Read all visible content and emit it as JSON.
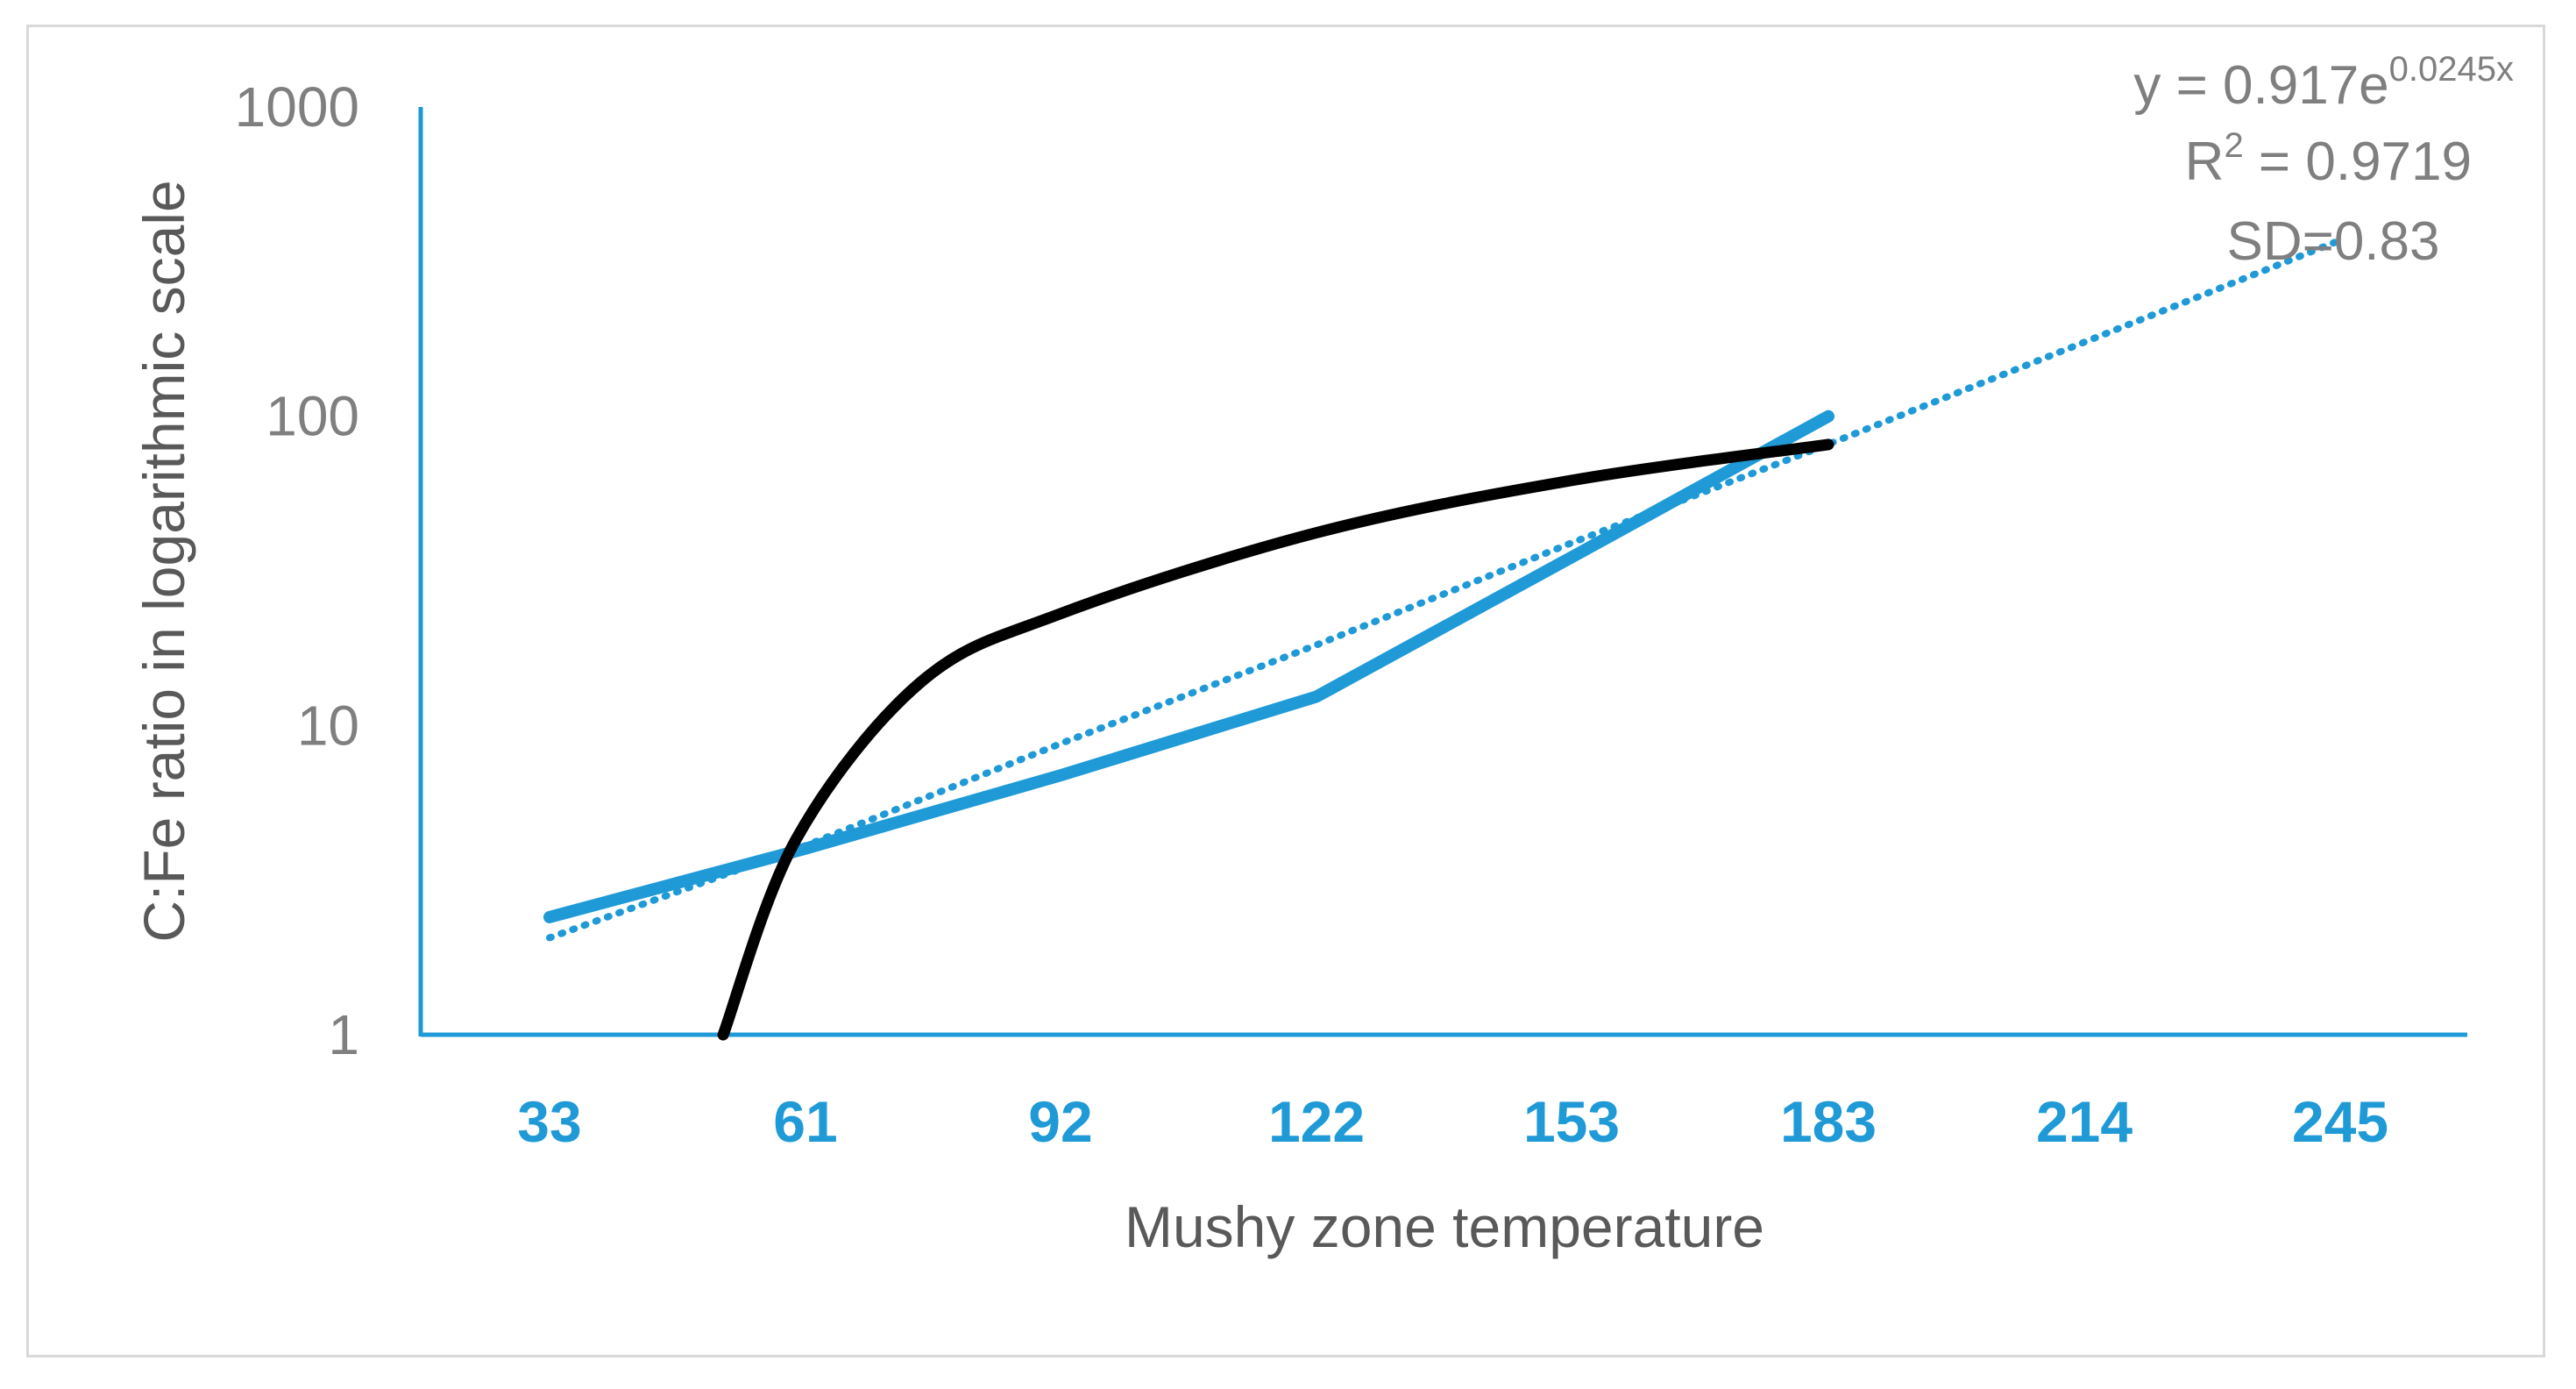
{
  "chart_data": {
    "type": "line",
    "xlabel": "Mushy zone temperature",
    "ylabel": "C:Fe ratio in logarithmic scale",
    "y_scale": "log",
    "ylim": [
      1,
      1000
    ],
    "y_ticks": [
      "1",
      "10",
      "100",
      "1000"
    ],
    "categories": [
      "33",
      "61",
      "92",
      "122",
      "153",
      "183",
      "214",
      "245"
    ],
    "series": [
      {
        "style": "solid",
        "color": "#1f9ad6",
        "values": [
          2.4,
          4.0,
          6.9,
          12.4,
          35,
          100,
          null,
          null
        ]
      },
      {
        "style": "dotted-trendline",
        "color": "#1f9ad6",
        "trend": "exponential",
        "a": 0.917,
        "b": 0.0245,
        "x_range": [
          33,
          245
        ]
      },
      {
        "style": "solid",
        "color": "#000000",
        "trend": "logarithmic",
        "points_x": [
          52,
          60,
          75,
          92,
          122,
          153,
          183
        ],
        "points_y": [
          1.0,
          4.3,
          13.8,
          23,
          42,
          62,
          81
        ]
      }
    ],
    "annotations": {
      "equation_base": "y = 0.917e",
      "equation_exp": "0.0245x",
      "r2_label": "R",
      "r2_sup": "2",
      "r2_value": " = 0.9719",
      "sd": "SD=0.83"
    },
    "grid": false,
    "legend": "none"
  },
  "colors": {
    "accent": "#1f9ad6",
    "black_curve": "#000000",
    "tick_gray": "#7f7f7f",
    "title_gray": "#595959"
  }
}
